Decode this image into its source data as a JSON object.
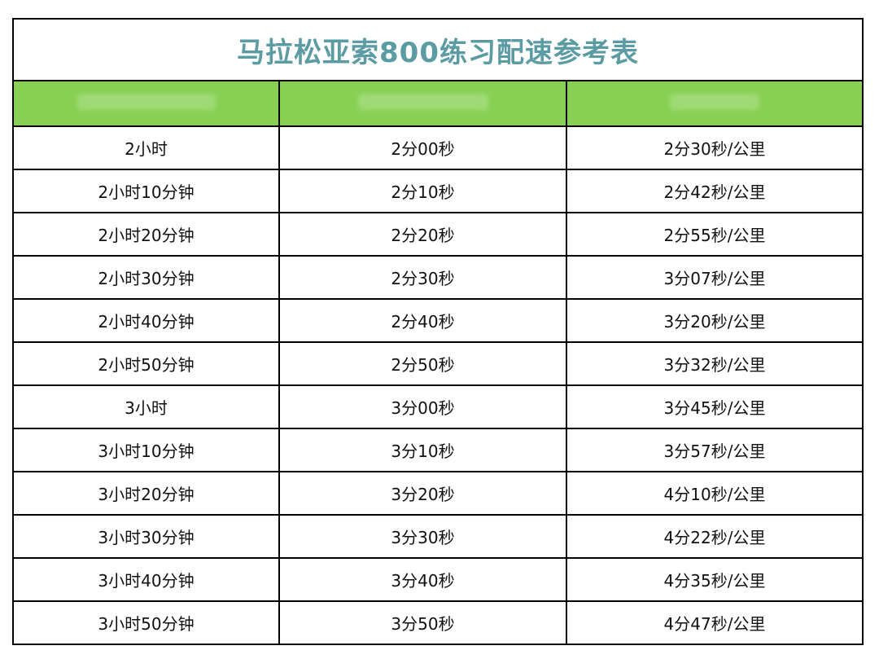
{
  "title": "马拉松亚索800练习配速参考表",
  "colors": {
    "title_text": "#5b9ba3",
    "header_bg": "#88d054",
    "border": "#000000"
  },
  "rows": [
    {
      "marathon": "2小时",
      "interval": "2分00秒",
      "pace": "2分30秒/公里"
    },
    {
      "marathon": "2小时10分钟",
      "interval": "2分10秒",
      "pace": "2分42秒/公里"
    },
    {
      "marathon": "2小时20分钟",
      "interval": "2分20秒",
      "pace": "2分55秒/公里"
    },
    {
      "marathon": "2小时30分钟",
      "interval": "2分30秒",
      "pace": "3分07秒/公里"
    },
    {
      "marathon": "2小时40分钟",
      "interval": "2分40秒",
      "pace": "3分20秒/公里"
    },
    {
      "marathon": "2小时50分钟",
      "interval": "2分50秒",
      "pace": "3分32秒/公里"
    },
    {
      "marathon": "3小时",
      "interval": "3分00秒",
      "pace": "3分45秒/公里"
    },
    {
      "marathon": "3小时10分钟",
      "interval": "3分10秒",
      "pace": "3分57秒/公里"
    },
    {
      "marathon": "3小时20分钟",
      "interval": "3分20秒",
      "pace": "4分10秒/公里"
    },
    {
      "marathon": "3小时30分钟",
      "interval": "3分30秒",
      "pace": "4分22秒/公里"
    },
    {
      "marathon": "3小时40分钟",
      "interval": "3分40秒",
      "pace": "4分35秒/公里"
    },
    {
      "marathon": "3小时50分钟",
      "interval": "3分50秒",
      "pace": "4分47秒/公里"
    }
  ]
}
